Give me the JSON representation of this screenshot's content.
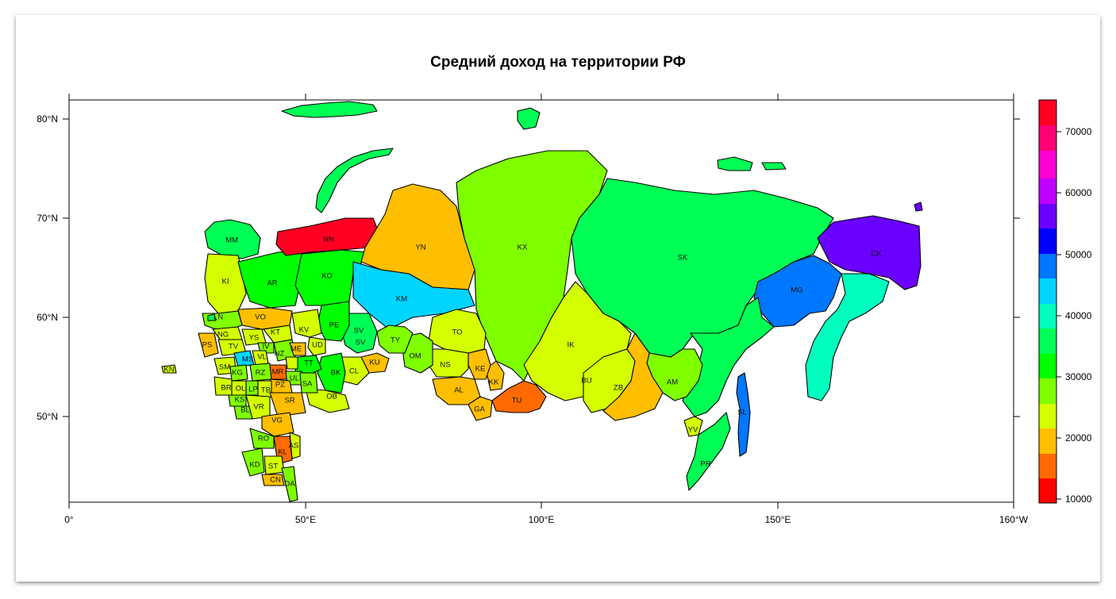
{
  "title": "Средний доход на территории РФ",
  "axes": {
    "x_ticks": [
      "0°",
      "50°E",
      "100°E",
      "150°E",
      "160°W"
    ],
    "y_ticks": [
      "80°N",
      "70°N",
      "60°N",
      "50°N"
    ]
  },
  "legend": {
    "ticks": [
      "70000",
      "60000",
      "50000",
      "40000",
      "30000",
      "20000",
      "10000"
    ],
    "colors": [
      "#FF0000",
      "#FF6A00",
      "#FFBF00",
      "#D4FF00",
      "#7FFF00",
      "#00FF00",
      "#00FF55",
      "#00FFBF",
      "#00D4FF",
      "#0077FF",
      "#0000FF",
      "#6A00FF",
      "#BF00FF",
      "#FF00D4",
      "#FF0077",
      "#FF0022"
    ]
  },
  "map_labels": [
    "MM",
    "NN",
    "YN",
    "KX",
    "SK",
    "CK",
    "MG",
    "KO",
    "AR",
    "KI",
    "KM",
    "LN",
    "VO",
    "KT",
    "KV",
    "PE",
    "SV",
    "TY",
    "OM",
    "TO",
    "IK",
    "NG",
    "YS",
    "PS",
    "TV",
    "MS",
    "IV",
    "NZ",
    "ME",
    "UD",
    "TT",
    "BK",
    "CL",
    "KU",
    "NS",
    "KE",
    "KK",
    "AL",
    "GA",
    "TU",
    "BU",
    "ZB",
    "AM",
    "SL",
    "YV",
    "PR",
    "SM",
    "KG",
    "RZ",
    "VL",
    "MR",
    "PZ",
    "UL",
    "SA",
    "OB",
    "BR",
    "OL",
    "LP",
    "TB",
    "KS",
    "BL",
    "VR",
    "SR",
    "VG",
    "RO",
    "AS",
    "KL",
    "ST",
    "KN",
    "KD",
    "CN",
    "DA"
  ],
  "map_labels_2": [
    "SV",
    "SV"
  ],
  "map_labels_3": [
    "KN",
    "KD"
  ]
}
